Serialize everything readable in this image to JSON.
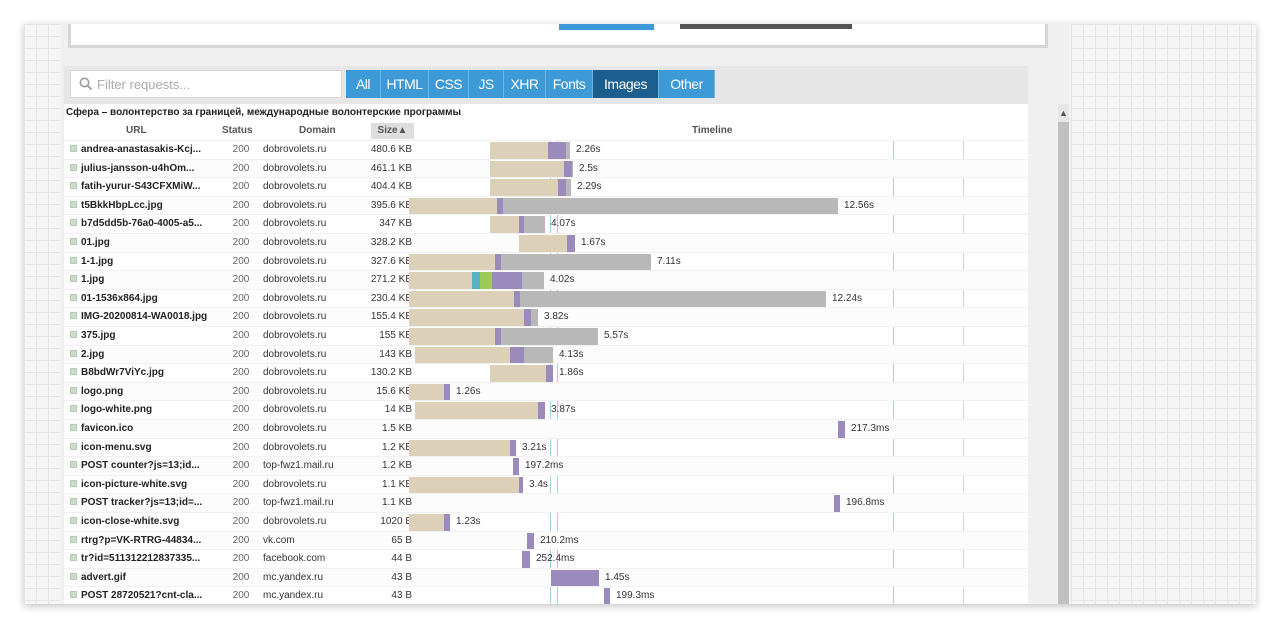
{
  "search": {
    "placeholder": "Filter requests..."
  },
  "filters": [
    {
      "label": "All",
      "active": false
    },
    {
      "label": "HTML",
      "active": false
    },
    {
      "label": "CSS",
      "active": false
    },
    {
      "label": "JS",
      "active": false
    },
    {
      "label": "XHR",
      "active": false
    },
    {
      "label": "Fonts",
      "active": false
    },
    {
      "label": "Images",
      "active": true
    },
    {
      "label": "Other",
      "active": false
    }
  ],
  "page_title": "Сфера – волонтерство за границей, международные волонтерские программы",
  "columns": {
    "url": "URL",
    "status": "Status",
    "domain": "Domain",
    "size": "Size",
    "timeline": "Timeline"
  },
  "colors": {
    "wait": "#ddd0b8",
    "receive": "#9b8bbd",
    "blocked": "#b8b8b8",
    "accent": "#3d9ad6",
    "active_tab": "#1c5f8f"
  },
  "requests": [
    {
      "url": "andrea-anastasakis-Kcj...",
      "status": "200",
      "domain": "dobrovolets.ru",
      "size": "480.6 KB",
      "time": "2.26s",
      "t": [
        490,
        548,
        557,
        566,
        570
      ]
    },
    {
      "url": "julius-jansson-u4hOm...",
      "status": "200",
      "domain": "dobrovolets.ru",
      "size": "461.1 KB",
      "time": "2.5s",
      "t": [
        490,
        564,
        566,
        572,
        573
      ]
    },
    {
      "url": "fatih-yurur-S43CFXMiW...",
      "status": "200",
      "domain": "dobrovolets.ru",
      "size": "404.4 KB",
      "time": "2.29s",
      "t": [
        490,
        558,
        558,
        566,
        571
      ]
    },
    {
      "url": "t5BkkHbpLcc.jpg",
      "status": "200",
      "domain": "dobrovolets.ru",
      "size": "395.6 KB",
      "time": "12.56s",
      "t": [
        409,
        497,
        499,
        503,
        838
      ]
    },
    {
      "url": "b7d5dd5b-76a0-4005-a5...",
      "status": "200",
      "domain": "dobrovolets.ru",
      "size": "347 KB",
      "time": "4.07s",
      "t": [
        490,
        519,
        519,
        524,
        545
      ]
    },
    {
      "url": "01.jpg",
      "status": "200",
      "domain": "dobrovolets.ru",
      "size": "328.2 KB",
      "time": "1.67s",
      "t": [
        519,
        567,
        567,
        575,
        575
      ]
    },
    {
      "url": "1-1.jpg",
      "status": "200",
      "domain": "dobrovolets.ru",
      "size": "327.6 KB",
      "time": "7.11s",
      "t": [
        409,
        495,
        497,
        501,
        651
      ]
    },
    {
      "url": "1.jpg",
      "status": "200",
      "domain": "dobrovolets.ru",
      "size": "271.2 KB",
      "time": "4.02s",
      "t": [
        409,
        484,
        510,
        522,
        544
      ]
    },
    {
      "url": "01-1536x864.jpg",
      "status": "200",
      "domain": "dobrovolets.ru",
      "size": "230.4 KB",
      "time": "12.24s",
      "t": [
        409,
        514,
        514,
        520,
        826
      ]
    },
    {
      "url": "IMG-20200814-WA0018.jpg",
      "status": "200",
      "domain": "dobrovolets.ru",
      "size": "155.4 KB",
      "time": "3.82s",
      "t": [
        409,
        524,
        524,
        531,
        538
      ]
    },
    {
      "url": "375.jpg",
      "status": "200",
      "domain": "dobrovolets.ru",
      "size": "155 KB",
      "time": "5.57s",
      "t": [
        409,
        495,
        497,
        501,
        598
      ]
    },
    {
      "url": "2.jpg",
      "status": "200",
      "domain": "dobrovolets.ru",
      "size": "143 KB",
      "time": "4.13s",
      "t": [
        415,
        510,
        510,
        524,
        553
      ]
    },
    {
      "url": "B8bdWr7ViYc.jpg",
      "status": "200",
      "domain": "dobrovolets.ru",
      "size": "130.2 KB",
      "time": "1.86s",
      "t": [
        490,
        546,
        546,
        553,
        553
      ]
    },
    {
      "url": "logo.png",
      "status": "200",
      "domain": "dobrovolets.ru",
      "size": "15.6 KB",
      "time": "1.26s",
      "t": [
        409,
        444,
        444,
        450,
        450
      ]
    },
    {
      "url": "logo-white.png",
      "status": "200",
      "domain": "dobrovolets.ru",
      "size": "14 KB",
      "time": "3.87s",
      "t": [
        415,
        538,
        538,
        545,
        545
      ]
    },
    {
      "url": "favicon.ico",
      "status": "200",
      "domain": "dobrovolets.ru",
      "size": "1.5 KB",
      "time": "217.3ms",
      "t": [
        838,
        838,
        838,
        845,
        845
      ]
    },
    {
      "url": "icon-menu.svg",
      "status": "200",
      "domain": "dobrovolets.ru",
      "size": "1.2 KB",
      "time": "3.21s",
      "t": [
        409,
        510,
        510,
        516,
        516
      ]
    },
    {
      "url": "POST counter?js=13;id...",
      "status": "200",
      "domain": "top-fwz1.mail.ru",
      "size": "1.2 KB",
      "time": "197.2ms",
      "t": [
        513,
        513,
        513,
        519,
        519
      ]
    },
    {
      "url": "icon-picture-white.svg",
      "status": "200",
      "domain": "dobrovolets.ru",
      "size": "1.1 KB",
      "time": "3.4s",
      "t": [
        409,
        519,
        519,
        523,
        523
      ]
    },
    {
      "url": "POST tracker?js=13;id=...",
      "status": "200",
      "domain": "top-fwz1.mail.ru",
      "size": "1.1 KB",
      "time": "196.8ms",
      "t": [
        834,
        834,
        834,
        840,
        840
      ]
    },
    {
      "url": "icon-close-white.svg",
      "status": "200",
      "domain": "dobrovolets.ru",
      "size": "1020 B",
      "time": "1.23s",
      "t": [
        409,
        444,
        444,
        450,
        450
      ]
    },
    {
      "url": "rtrg?p=VK-RTRG-44834...",
      "status": "200",
      "domain": "vk.com",
      "size": "65 B",
      "time": "210.2ms",
      "t": [
        527,
        527,
        527,
        534,
        534
      ]
    },
    {
      "url": "tr?id=511312212837335...",
      "status": "200",
      "domain": "facebook.com",
      "size": "44 B",
      "time": "252.4ms",
      "t": [
        522,
        522,
        522,
        530,
        530
      ]
    },
    {
      "url": "advert.gif",
      "status": "200",
      "domain": "mc.yandex.ru",
      "size": "43 B",
      "time": "1.45s",
      "t": [
        551,
        551,
        551,
        599,
        599
      ]
    },
    {
      "url": "POST 28720521?cnt-cla...",
      "status": "200",
      "domain": "mc.yandex.ru",
      "size": "43 B",
      "time": "199.3ms",
      "t": [
        604,
        604,
        604,
        610,
        610
      ]
    }
  ]
}
